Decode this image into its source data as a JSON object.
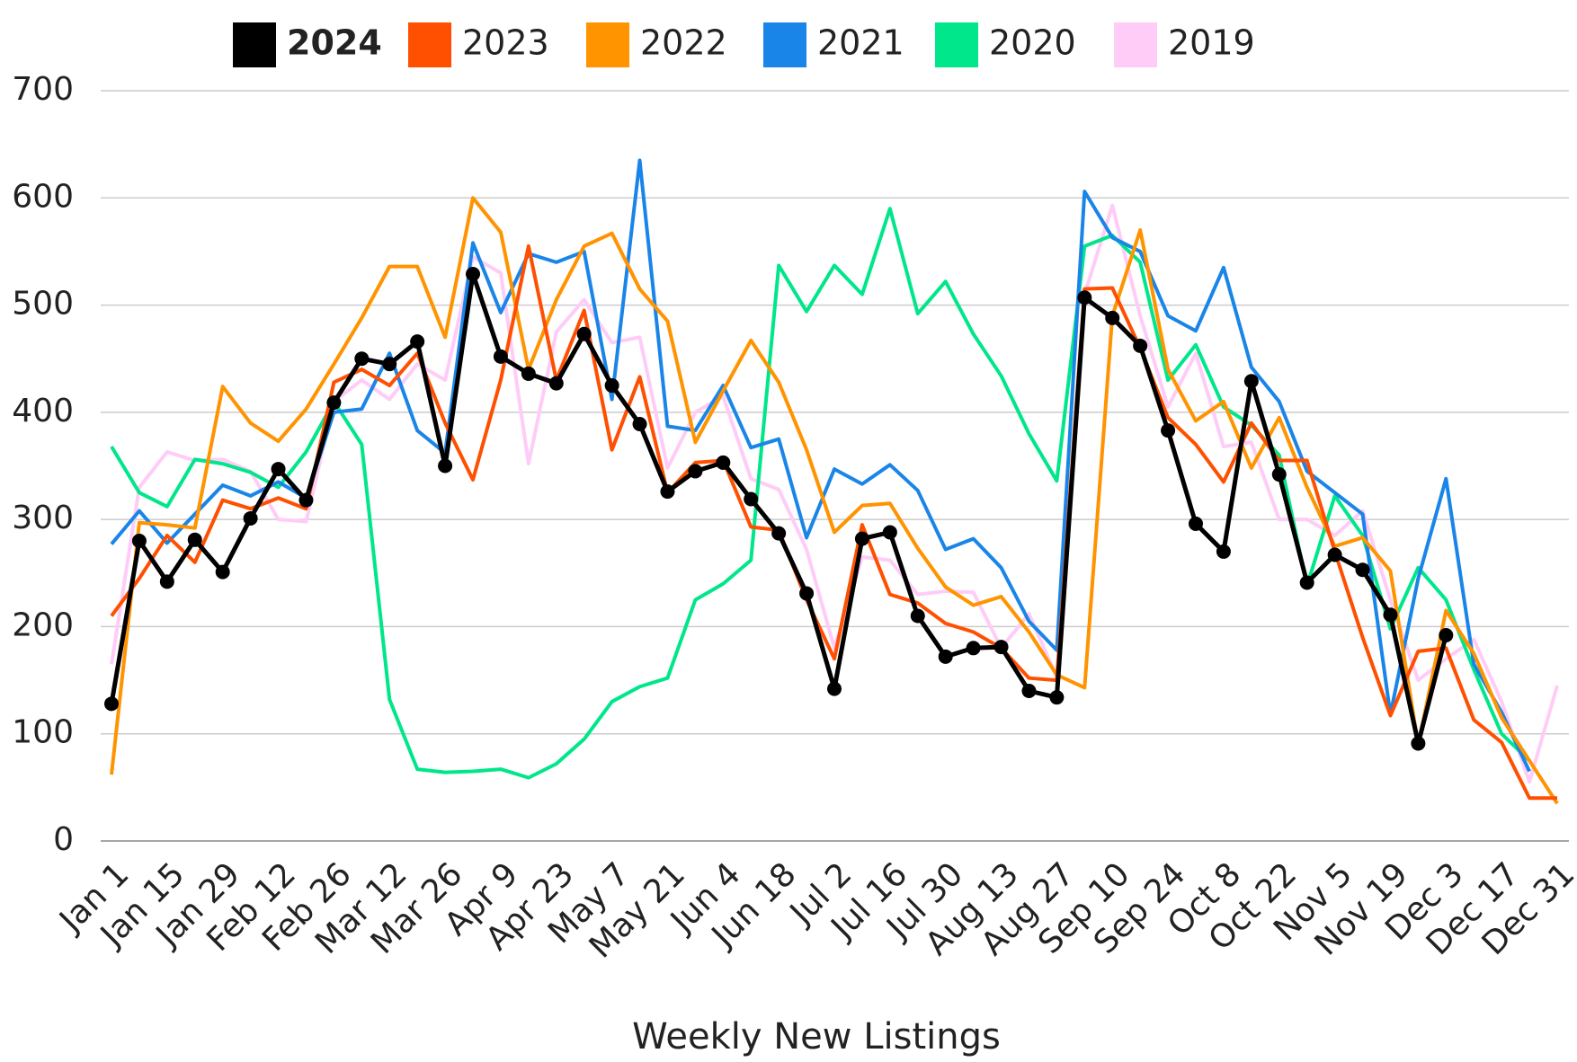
{
  "chart_data": {
    "type": "line",
    "title": "Weekly New Listings",
    "categories": [
      "Jan 1",
      null,
      "Jan 15",
      null,
      "Jan 29",
      null,
      "Feb 12",
      null,
      "Feb 26",
      null,
      "Mar 12",
      null,
      "Mar 26",
      null,
      "Apr 9",
      null,
      "Apr 23",
      null,
      "May 7",
      null,
      "May 21",
      null,
      "Jun 4",
      null,
      "Jun 18",
      null,
      "Jul 2",
      null,
      "Jul 16",
      null,
      "Jul 30",
      null,
      "Aug 13",
      null,
      "Aug 27",
      null,
      "Sep 10",
      null,
      "Sep 24",
      null,
      "Oct 8",
      null,
      "Oct 22",
      null,
      "Nov 5",
      null,
      "Nov 19",
      null,
      "Dec 3",
      null,
      "Dec 17",
      null,
      "Dec 31"
    ],
    "ylim": [
      0,
      700
    ],
    "yticks": [
      0,
      100,
      200,
      300,
      400,
      500,
      600,
      700
    ],
    "grid": true,
    "legend": "top",
    "series": [
      {
        "name": "2024",
        "color": "#000000",
        "marker": true,
        "values": [
          128,
          280,
          242,
          281,
          251,
          301,
          347,
          318,
          409,
          450,
          445,
          466,
          350,
          529,
          452,
          436,
          427,
          473,
          425,
          389,
          326,
          345,
          353,
          319,
          287,
          231,
          142,
          282,
          288,
          210,
          172,
          180,
          181,
          140,
          134,
          507,
          488,
          462,
          383,
          296,
          270,
          429,
          342,
          241,
          267,
          253,
          211,
          91,
          192,
          null,
          null,
          null,
          null
        ]
      },
      {
        "name": "2023",
        "color": "#ff4f00",
        "values": [
          210,
          245,
          285,
          260,
          318,
          310,
          320,
          310,
          428,
          440,
          425,
          455,
          390,
          337,
          430,
          555,
          430,
          495,
          365,
          433,
          325,
          353,
          355,
          293,
          290,
          225,
          170,
          295,
          230,
          222,
          203,
          195,
          180,
          152,
          150,
          515,
          516,
          460,
          395,
          370,
          335,
          390,
          355,
          355,
          270,
          190,
          117,
          177,
          180,
          113,
          92,
          40,
          40
        ]
      },
      {
        "name": "2022",
        "color": "#ff9300",
        "values": [
          62,
          297,
          295,
          292,
          424,
          390,
          373,
          403,
          445,
          488,
          536,
          536,
          470,
          600,
          568,
          440,
          505,
          555,
          567,
          515,
          485,
          372,
          420,
          467,
          428,
          365,
          288,
          313,
          315,
          273,
          237,
          220,
          228,
          195,
          155,
          143,
          490,
          570,
          440,
          392,
          410,
          348,
          395,
          330,
          275,
          283,
          252,
          90,
          215,
          175,
          115,
          75,
          35
        ]
      },
      {
        "name": "2021",
        "color": "#1a85e8",
        "values": [
          277,
          308,
          278,
          305,
          332,
          322,
          335,
          320,
          400,
          403,
          455,
          383,
          362,
          558,
          493,
          548,
          540,
          550,
          412,
          635,
          387,
          383,
          425,
          367,
          375,
          283,
          347,
          333,
          351,
          327,
          272,
          282,
          255,
          205,
          178,
          606,
          563,
          550,
          490,
          476,
          535,
          442,
          410,
          345,
          325,
          305,
          118,
          245,
          338,
          165,
          120,
          65,
          null
        ]
      },
      {
        "name": "2020",
        "color": "#00e68a",
        "values": [
          368,
          325,
          312,
          356,
          352,
          344,
          330,
          363,
          410,
          370,
          132,
          67,
          64,
          65,
          67,
          59,
          72,
          95,
          130,
          144,
          152,
          225,
          240,
          262,
          537,
          494,
          537,
          510,
          590,
          492,
          522,
          473,
          434,
          380,
          336,
          555,
          565,
          540,
          430,
          463,
          405,
          388,
          360,
          238,
          322,
          285,
          198,
          255,
          225,
          160,
          100,
          75,
          null
        ]
      },
      {
        "name": "2019",
        "color": "#ffccf8",
        "values": [
          165,
          330,
          363,
          355,
          356,
          345,
          300,
          298,
          410,
          430,
          412,
          445,
          430,
          545,
          530,
          352,
          475,
          505,
          465,
          470,
          348,
          400,
          415,
          338,
          328,
          272,
          180,
          265,
          262,
          230,
          233,
          232,
          180,
          212,
          153,
          510,
          593,
          490,
          405,
          455,
          368,
          372,
          300,
          300,
          285,
          308,
          225,
          150,
          170,
          188,
          130,
          55,
          145
        ]
      }
    ]
  }
}
